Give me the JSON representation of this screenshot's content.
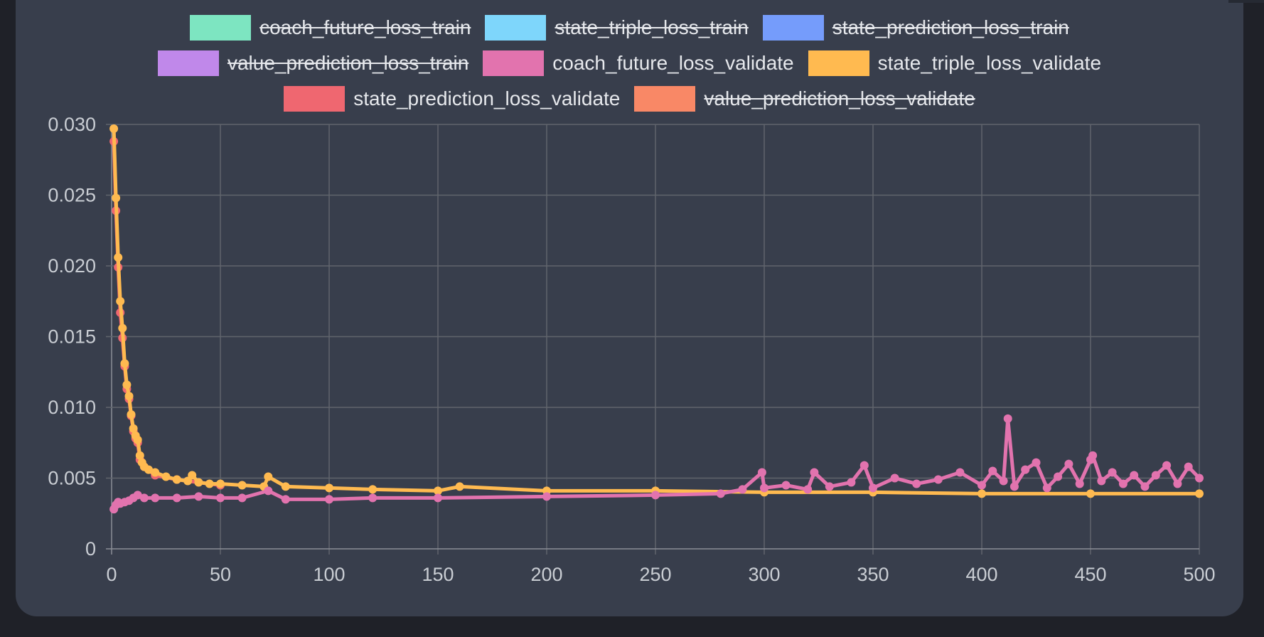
{
  "chart_data": {
    "type": "line",
    "title": "",
    "xlabel": "",
    "ylabel": "",
    "xlim": [
      0,
      500
    ],
    "ylim": [
      0,
      0.03
    ],
    "x_ticks": [
      "0",
      "50",
      "100",
      "150",
      "200",
      "250",
      "300",
      "350",
      "400",
      "450",
      "500"
    ],
    "y_ticks": [
      "0",
      "0.005",
      "0.010",
      "0.015",
      "0.020",
      "0.025",
      "0.030"
    ],
    "grid": true,
    "legend_position": "top",
    "legend": [
      {
        "label": "coach_future_loss_train",
        "color": "#7de5c1",
        "hidden": true
      },
      {
        "label": "state_triple_loss_train",
        "color": "#7ed6fb",
        "hidden": true
      },
      {
        "label": "state_prediction_loss_train",
        "color": "#759cfb",
        "hidden": true
      },
      {
        "label": "value_prediction_loss_train",
        "color": "#c088ea",
        "hidden": true
      },
      {
        "label": "coach_future_loss_validate",
        "color": "#e273ae",
        "hidden": false
      },
      {
        "label": "state_triple_loss_validate",
        "color": "#ffba50",
        "hidden": false
      },
      {
        "label": "state_prediction_loss_validate",
        "color": "#ef6770",
        "hidden": false
      },
      {
        "label": "value_prediction_loss_validate",
        "color": "#f98866",
        "hidden": true
      }
    ],
    "series": [
      {
        "name": "state_prediction_loss_validate",
        "color": "#ef6770",
        "x": [
          1,
          2,
          3,
          4,
          5,
          6,
          7,
          8,
          9,
          10,
          11,
          12,
          13,
          15,
          20,
          30,
          50
        ],
        "y": [
          0.0288,
          0.0239,
          0.0199,
          0.0167,
          0.0149,
          0.0129,
          0.0113,
          0.0106,
          0.0094,
          0.0083,
          0.0078,
          0.0075,
          0.0063,
          0.0058,
          0.0052,
          0.0049,
          0.0045
        ]
      },
      {
        "name": "state_triple_loss_validate",
        "color": "#ffba50",
        "x": [
          1,
          2,
          3,
          4,
          5,
          6,
          7,
          8,
          9,
          10,
          11,
          12,
          13,
          14,
          15,
          17,
          20,
          25,
          30,
          35,
          37,
          40,
          45,
          50,
          60,
          70,
          72,
          80,
          100,
          120,
          150,
          160,
          200,
          250,
          300,
          350,
          400,
          450,
          500
        ],
        "y": [
          0.0297,
          0.0248,
          0.0206,
          0.0175,
          0.0156,
          0.0131,
          0.0116,
          0.0108,
          0.0095,
          0.0085,
          0.008,
          0.0077,
          0.0066,
          0.0061,
          0.0058,
          0.0056,
          0.0054,
          0.0051,
          0.0049,
          0.0048,
          0.0052,
          0.0047,
          0.0046,
          0.0046,
          0.0045,
          0.0044,
          0.0051,
          0.0044,
          0.0043,
          0.0042,
          0.0041,
          0.0044,
          0.0041,
          0.0041,
          0.004,
          0.004,
          0.0039,
          0.0039,
          0.0039
        ]
      },
      {
        "name": "coach_future_loss_validate",
        "color": "#e273ae",
        "x": [
          1,
          2,
          3,
          4,
          6,
          8,
          10,
          12,
          15,
          20,
          30,
          40,
          50,
          60,
          72,
          80,
          100,
          120,
          150,
          200,
          250,
          280,
          290,
          299,
          300,
          310,
          320,
          323,
          330,
          340,
          346,
          350,
          360,
          370,
          380,
          390,
          400,
          405,
          410,
          412,
          415,
          420,
          425,
          430,
          435,
          440,
          445,
          450,
          451,
          455,
          460,
          465,
          470,
          475,
          480,
          485,
          490,
          495,
          500
        ],
        "y": [
          0.0028,
          0.0031,
          0.0033,
          0.0032,
          0.0033,
          0.0034,
          0.0036,
          0.0038,
          0.0036,
          0.0036,
          0.0036,
          0.0037,
          0.0036,
          0.0036,
          0.0041,
          0.0035,
          0.0035,
          0.0036,
          0.0036,
          0.0037,
          0.0038,
          0.0039,
          0.0042,
          0.0054,
          0.0043,
          0.0045,
          0.0042,
          0.0054,
          0.0044,
          0.0047,
          0.0059,
          0.0043,
          0.005,
          0.0046,
          0.0049,
          0.0054,
          0.0045,
          0.0055,
          0.0048,
          0.0092,
          0.0044,
          0.0056,
          0.0061,
          0.0043,
          0.0051,
          0.006,
          0.0046,
          0.0063,
          0.0066,
          0.0048,
          0.0054,
          0.0046,
          0.0052,
          0.0044,
          0.0052,
          0.0059,
          0.0046,
          0.0058,
          0.005
        ]
      }
    ]
  }
}
